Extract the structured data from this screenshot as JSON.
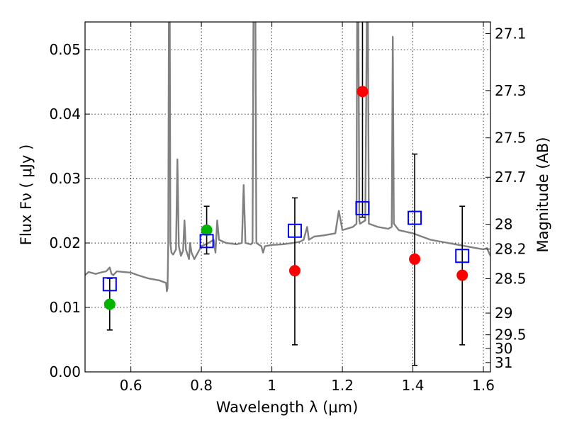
{
  "chart_data": {
    "type": "scatter",
    "xlabel": "Wavelength  λ (μm)",
    "ylabel": "Flux  Fν  ( μJy )",
    "y2label": "Magnitude (AB)",
    "xlim": [
      0.47,
      1.62
    ],
    "ylim": [
      0.0,
      0.0543
    ],
    "x_ticks": [
      0.6,
      0.8,
      1.0,
      1.2,
      1.4,
      1.6
    ],
    "x_tick_labels": [
      "0.6",
      "0.8",
      "1",
      "1.2",
      "1.4",
      "1.6"
    ],
    "y_ticks": [
      0.0,
      0.01,
      0.02,
      0.03,
      0.04,
      0.05
    ],
    "y_tick_labels": [
      "0.00",
      "0.01",
      "0.02",
      "0.03",
      "0.04",
      "0.05"
    ],
    "y2_ticks": [
      {
        "label": "27.1",
        "value": 27.1
      },
      {
        "label": "27.3",
        "value": 27.3
      },
      {
        "label": "27.5",
        "value": 27.5
      },
      {
        "label": "27.7",
        "value": 27.7
      },
      {
        "label": "28",
        "value": 28.0
      },
      {
        "label": "28.2",
        "value": 28.2
      },
      {
        "label": "28.5",
        "value": 28.5
      },
      {
        "label": "29",
        "value": 29.0
      },
      {
        "label": "29.5",
        "value": 29.5
      },
      {
        "label": "30",
        "value": 30.0
      },
      {
        "label": "31",
        "value": 31.0
      }
    ],
    "grid": true,
    "grid_style": "dotted",
    "series": [
      {
        "kind": "line",
        "color": "#808080",
        "points": [
          [
            0.47,
            0.015
          ],
          [
            0.48,
            0.0155
          ],
          [
            0.5,
            0.0152
          ],
          [
            0.52,
            0.0155
          ],
          [
            0.53,
            0.0156
          ],
          [
            0.54,
            0.0162
          ],
          [
            0.545,
            0.0152
          ],
          [
            0.55,
            0.015
          ],
          [
            0.56,
            0.0156
          ],
          [
            0.6,
            0.0154
          ],
          [
            0.62,
            0.015
          ],
          [
            0.65,
            0.0145
          ],
          [
            0.68,
            0.0142
          ],
          [
            0.7,
            0.0138
          ],
          [
            0.702,
            0.0125
          ],
          [
            0.704,
            0.013
          ],
          [
            0.706,
            0.02
          ],
          [
            0.708,
            0.06
          ],
          [
            0.71,
            0.06
          ],
          [
            0.712,
            0.02
          ],
          [
            0.715,
            0.0185
          ],
          [
            0.72,
            0.0182
          ],
          [
            0.728,
            0.019
          ],
          [
            0.732,
            0.033
          ],
          [
            0.736,
            0.0195
          ],
          [
            0.742,
            0.018
          ],
          [
            0.748,
            0.0188
          ],
          [
            0.752,
            0.0235
          ],
          [
            0.756,
            0.019
          ],
          [
            0.765,
            0.0175
          ],
          [
            0.768,
            0.02
          ],
          [
            0.772,
            0.0185
          ],
          [
            0.78,
            0.0175
          ],
          [
            0.79,
            0.0185
          ],
          [
            0.8,
            0.0195
          ],
          [
            0.82,
            0.02
          ],
          [
            0.835,
            0.0205
          ],
          [
            0.84,
            0.0185
          ],
          [
            0.845,
            0.0235
          ],
          [
            0.85,
            0.0205
          ],
          [
            0.87,
            0.02
          ],
          [
            0.9,
            0.0198
          ],
          [
            0.915,
            0.02
          ],
          [
            0.92,
            0.029
          ],
          [
            0.925,
            0.02
          ],
          [
            0.94,
            0.0198
          ],
          [
            0.945,
            0.02
          ],
          [
            0.948,
            0.06
          ],
          [
            0.953,
            0.06
          ],
          [
            0.956,
            0.02
          ],
          [
            0.97,
            0.0195
          ],
          [
            0.975,
            0.0185
          ],
          [
            0.98,
            0.0195
          ],
          [
            1.0,
            0.0197
          ],
          [
            1.03,
            0.0198
          ],
          [
            1.06,
            0.02
          ],
          [
            1.08,
            0.0202
          ],
          [
            1.09,
            0.0205
          ],
          [
            1.1,
            0.0225
          ],
          [
            1.105,
            0.0205
          ],
          [
            1.12,
            0.021
          ],
          [
            1.15,
            0.0212
          ],
          [
            1.18,
            0.0215
          ],
          [
            1.19,
            0.025
          ],
          [
            1.2,
            0.022
          ],
          [
            1.23,
            0.0225
          ],
          [
            1.24,
            0.023
          ],
          [
            1.242,
            0.06
          ],
          [
            1.245,
            0.06
          ],
          [
            1.248,
            0.0235
          ],
          [
            1.25,
            0.023
          ],
          [
            1.265,
            0.0235
          ],
          [
            1.27,
            0.06
          ],
          [
            1.272,
            0.06
          ],
          [
            1.275,
            0.023
          ],
          [
            1.3,
            0.0225
          ],
          [
            1.33,
            0.0222
          ],
          [
            1.34,
            0.0225
          ],
          [
            1.343,
            0.052
          ],
          [
            1.346,
            0.023
          ],
          [
            1.36,
            0.022
          ],
          [
            1.4,
            0.0215
          ],
          [
            1.45,
            0.0205
          ],
          [
            1.5,
            0.02
          ],
          [
            1.55,
            0.0195
          ],
          [
            1.58,
            0.0192
          ],
          [
            1.6,
            0.019
          ],
          [
            1.61,
            0.0192
          ],
          [
            1.62,
            0.018
          ]
        ]
      },
      {
        "kind": "points",
        "color": "#ff0000",
        "marker": "circle",
        "points": [
          {
            "x": 1.065,
            "y": 0.0157,
            "yerr_low": 0.0042,
            "yerr_high": 0.027
          },
          {
            "x": 1.257,
            "y": 0.0435,
            "yerr_low": 0.024,
            "yerr_high": 0.06
          },
          {
            "x": 1.405,
            "y": 0.0175,
            "yerr_low": 0.001,
            "yerr_high": 0.0338
          },
          {
            "x": 1.54,
            "y": 0.015,
            "yerr_low": 0.0042,
            "yerr_high": 0.0257
          }
        ]
      },
      {
        "kind": "points",
        "color": "#00b400",
        "marker": "circle",
        "points": [
          {
            "x": 0.54,
            "y": 0.0105,
            "yerr_low": 0.0065,
            "yerr_high": 0.0145
          },
          {
            "x": 0.815,
            "y": 0.022,
            "yerr_low": 0.0183,
            "yerr_high": 0.0257
          }
        ]
      },
      {
        "kind": "points",
        "color": "#0000ff",
        "marker": "open-square",
        "points": [
          {
            "x": 0.54,
            "y": 0.0136
          },
          {
            "x": 0.815,
            "y": 0.0203
          },
          {
            "x": 1.065,
            "y": 0.0219
          },
          {
            "x": 1.257,
            "y": 0.0254
          },
          {
            "x": 1.405,
            "y": 0.0239
          },
          {
            "x": 1.54,
            "y": 0.018
          }
        ]
      }
    ]
  }
}
